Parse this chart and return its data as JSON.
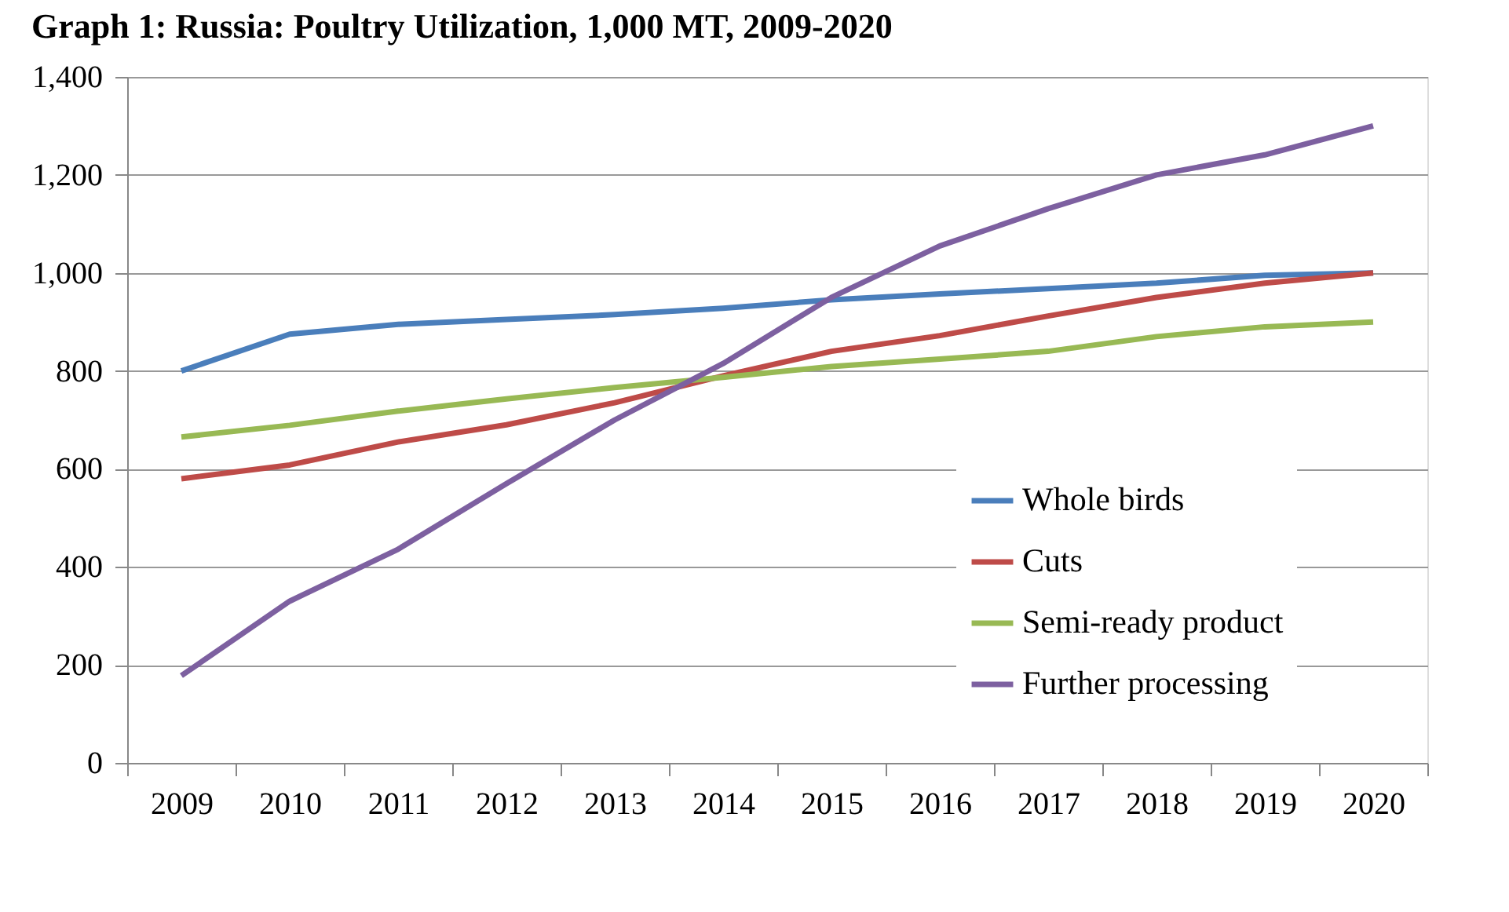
{
  "chart_data": {
    "type": "line",
    "title": "Graph 1: Russia: Poultry Utilization, 1,000 MT, 2009-2020",
    "categories": [
      "2009",
      "2010",
      "2011",
      "2012",
      "2013",
      "2014",
      "2015",
      "2016",
      "2017",
      "2018",
      "2019",
      "2020"
    ],
    "series": [
      {
        "name": "Whole birds",
        "color": "#4a7ebb",
        "values": [
          800,
          875,
          895,
          905,
          915,
          928,
          945,
          957,
          968,
          979,
          995,
          1000
        ]
      },
      {
        "name": "Cuts",
        "color": "#be4b48",
        "values": [
          580,
          608,
          655,
          690,
          735,
          790,
          840,
          872,
          912,
          950,
          979,
          1000
        ]
      },
      {
        "name": "Semi-ready product",
        "color": "#98b954",
        "values": [
          665,
          689,
          718,
          743,
          766,
          787,
          809,
          824,
          840,
          870,
          890,
          900
        ]
      },
      {
        "name": "Further processing",
        "color": "#7d60a0",
        "values": [
          178,
          330,
          436,
          570,
          700,
          815,
          950,
          1055,
          1131,
          1200,
          1241,
          1300
        ]
      }
    ],
    "ylim": [
      0,
      1400
    ],
    "yticks": [
      0,
      200,
      400,
      600,
      800,
      {
        "value": 1000,
        "label": "1,000"
      },
      {
        "value": 1200,
        "label": "1,200"
      },
      {
        "value": 1400,
        "label": "1,400"
      }
    ],
    "grid": "y",
    "legend": "bottom right",
    "marker": "none",
    "line_style": "solid"
  }
}
